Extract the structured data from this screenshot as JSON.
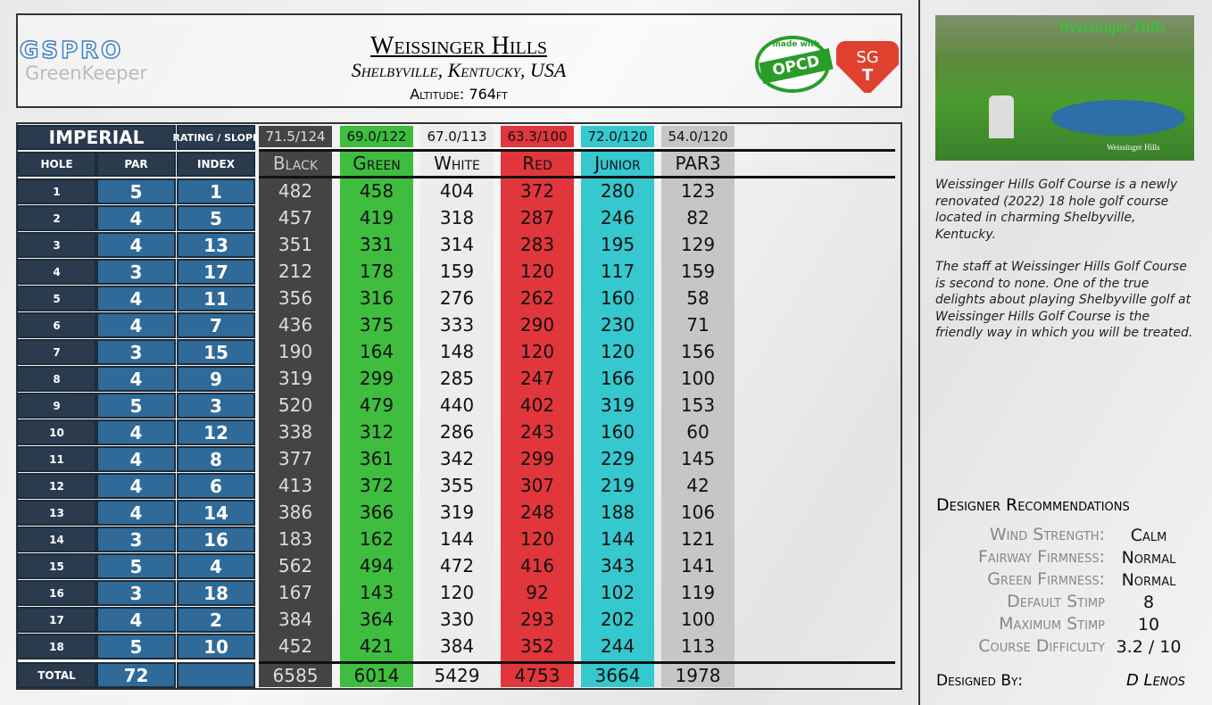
{
  "header": {
    "logo_top": "GSPRO",
    "logo_bottom": "GreenKeeper",
    "title": "Weissinger Hills",
    "location": "Shelbyville, Kentucky, USA",
    "altitude": "Altitude: 764ft",
    "badge_top": "made with",
    "badge_main": "OPCD",
    "sgt_top": "SG",
    "sgt_bottom": "T"
  },
  "photo": {
    "caption": "Weissinger Hills",
    "logo": "Weissinger Hills"
  },
  "table": {
    "unit": "IMPERIAL",
    "rating_header": "RATING / SLOPE",
    "columns": [
      "HOLE",
      "PAR",
      "INDEX"
    ],
    "holes": [
      1,
      2,
      3,
      4,
      5,
      6,
      7,
      8,
      9,
      10,
      11,
      12,
      13,
      14,
      15,
      16,
      17,
      18
    ],
    "par": [
      5,
      4,
      4,
      3,
      4,
      4,
      3,
      4,
      5,
      4,
      4,
      4,
      4,
      3,
      5,
      3,
      4,
      5
    ],
    "index": [
      1,
      5,
      13,
      17,
      11,
      7,
      15,
      9,
      3,
      12,
      8,
      6,
      14,
      16,
      4,
      18,
      2,
      10
    ],
    "total_label": "TOTAL",
    "par_total": 72,
    "tees": [
      {
        "name": "Black",
        "rating": "71.5/124",
        "yards": [
          482,
          457,
          351,
          212,
          356,
          436,
          190,
          319,
          520,
          338,
          377,
          413,
          386,
          183,
          562,
          167,
          384,
          452
        ],
        "total": 6585
      },
      {
        "name": "Green",
        "rating": "69.0/122",
        "yards": [
          458,
          419,
          331,
          178,
          316,
          375,
          164,
          299,
          479,
          312,
          361,
          372,
          366,
          162,
          494,
          143,
          364,
          421
        ],
        "total": 6014
      },
      {
        "name": "White",
        "rating": "67.0/113",
        "yards": [
          404,
          318,
          314,
          159,
          276,
          333,
          148,
          285,
          440,
          286,
          342,
          355,
          319,
          144,
          472,
          120,
          330,
          384
        ],
        "total": 5429
      },
      {
        "name": "Red",
        "rating": "63.3/100",
        "yards": [
          372,
          287,
          283,
          120,
          262,
          290,
          120,
          247,
          402,
          243,
          299,
          307,
          248,
          120,
          416,
          92,
          293,
          352
        ],
        "total": 4753
      },
      {
        "name": "Junior",
        "rating": "72.0/120",
        "yards": [
          280,
          246,
          195,
          117,
          160,
          230,
          120,
          166,
          319,
          160,
          229,
          219,
          188,
          144,
          343,
          102,
          202,
          244
        ],
        "total": 3664
      },
      {
        "name": "PAR3",
        "rating": "54.0/120",
        "yards": [
          123,
          82,
          129,
          159,
          58,
          71,
          156,
          100,
          153,
          60,
          145,
          42,
          106,
          121,
          141,
          119,
          100,
          113
        ],
        "total": 1978
      }
    ]
  },
  "description": [
    "Weissinger Hills Golf Course is a newly renovated (2022) 18 hole golf course located in charming Shelbyville, Kentucky.",
    "The staff at Weissinger Hills Golf Course is second to none. One of the true delights about playing Shelbyville golf at Weissinger Hills Golf Course is the friendly way in which you will be treated."
  ],
  "recommendations": {
    "title": "Designer Recommendations",
    "items": [
      {
        "label": "Wind Strength:",
        "value": "Calm"
      },
      {
        "label": "Fairway Firmness:",
        "value": "Normal"
      },
      {
        "label": "Green Firmness:",
        "value": "Normal"
      },
      {
        "label": "Default Stimp",
        "value": 8
      },
      {
        "label": "Maximum Stimp",
        "value": 10
      },
      {
        "label": "Course Difficulty",
        "value": "3.2 / 10"
      }
    ],
    "designed_by_label": "Designed By:",
    "designed_by": "D Lenos"
  }
}
